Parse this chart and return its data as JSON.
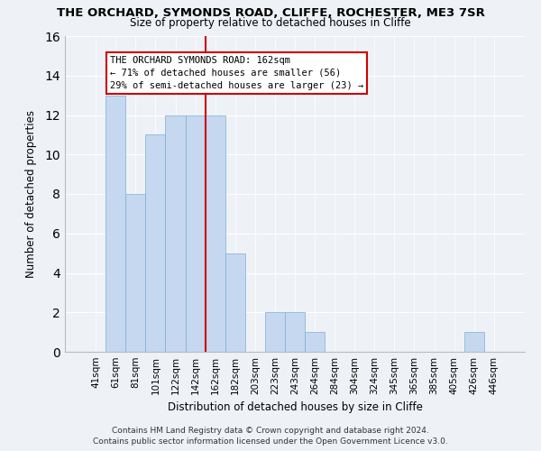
{
  "title": "THE ORCHARD, SYMONDS ROAD, CLIFFE, ROCHESTER, ME3 7SR",
  "subtitle": "Size of property relative to detached houses in Cliffe",
  "xlabel": "Distribution of detached houses by size in Cliffe",
  "ylabel": "Number of detached properties",
  "footer_line1": "Contains HM Land Registry data © Crown copyright and database right 2024.",
  "footer_line2": "Contains public sector information licensed under the Open Government Licence v3.0.",
  "bins": [
    "41sqm",
    "61sqm",
    "81sqm",
    "101sqm",
    "122sqm",
    "142sqm",
    "162sqm",
    "182sqm",
    "203sqm",
    "223sqm",
    "243sqm",
    "264sqm",
    "284sqm",
    "304sqm",
    "324sqm",
    "345sqm",
    "365sqm",
    "385sqm",
    "405sqm",
    "426sqm",
    "446sqm"
  ],
  "values": [
    0,
    13,
    8,
    11,
    12,
    12,
    12,
    5,
    0,
    2,
    2,
    1,
    0,
    0,
    0,
    0,
    0,
    0,
    0,
    1,
    0
  ],
  "highlight_bin_index": 6,
  "bar_color": "#c5d8f0",
  "bar_edge_color": "#7bafd4",
  "highlight_line_color": "#cc0000",
  "ylim": [
    0,
    16
  ],
  "yticks": [
    0,
    2,
    4,
    6,
    8,
    10,
    12,
    14,
    16
  ],
  "annotation_title": "THE ORCHARD SYMONDS ROAD: 162sqm",
  "annotation_line1": "← 71% of detached houses are smaller (56)",
  "annotation_line2": "29% of semi-detached houses are larger (23) →",
  "annotation_box_facecolor": "#ffffff",
  "annotation_box_edgecolor": "#cc0000",
  "background_color": "#eef2f7",
  "grid_color": "#ffffff",
  "title_fontsize": 9.5,
  "subtitle_fontsize": 8.5,
  "axis_label_fontsize": 8.5,
  "tick_fontsize": 7.5,
  "annotation_fontsize": 7.5,
  "footer_fontsize": 6.5
}
